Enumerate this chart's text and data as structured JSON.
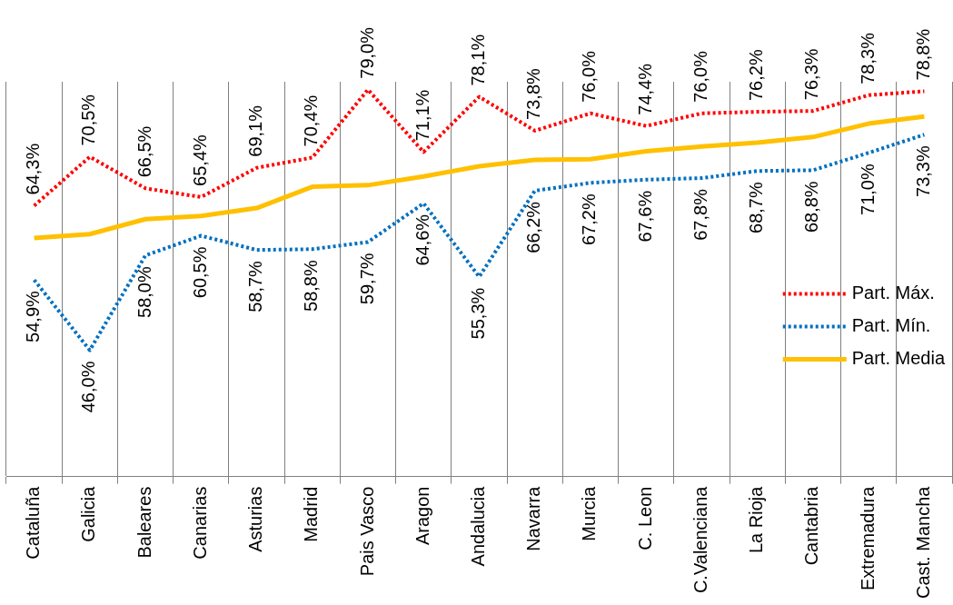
{
  "chart_data": {
    "type": "line",
    "categories": [
      "Cataluña",
      "Galicia",
      "Baleares",
      "Canarias",
      "Asturias",
      "Madrid",
      "Pais Vasco",
      "Aragon",
      "Andalucia",
      "Navarra",
      "Murcia",
      "C. Leon",
      "C.Valenciana",
      "La Rioja",
      "Cantabria",
      "Extremadura",
      "Cast. Mancha"
    ],
    "ylim": [
      30,
      80
    ],
    "tick_labels": "x",
    "grid": "x",
    "legend": "right",
    "marker": "none",
    "series": [
      {
        "name": "Part. Máx.",
        "color": "#ff0000",
        "line_style": "dotted",
        "values": [
          64.3,
          70.5,
          66.5,
          65.4,
          69.1,
          70.4,
          79.0,
          71.1,
          78.1,
          73.8,
          76.0,
          74.4,
          76.0,
          76.2,
          76.3,
          78.3,
          78.8
        ],
        "value_labels": [
          "64,3%",
          "70,5%",
          "66,5%",
          "65,4%",
          "69,1%",
          "70,4%",
          "79,0%",
          "71,1%",
          "78,1%",
          "73,8%",
          "76,0%",
          "74,4%",
          "76,0%",
          "76,2%",
          "76,3%",
          "78,3%",
          "78,8%"
        ]
      },
      {
        "name": "Part. Mín.",
        "color": "#0070c0",
        "line_style": "dotted",
        "values": [
          54.9,
          46.0,
          58.0,
          60.5,
          58.7,
          58.8,
          59.7,
          64.6,
          55.3,
          66.2,
          67.2,
          67.6,
          67.8,
          68.7,
          68.8,
          71.0,
          73.3
        ],
        "value_labels": [
          "54,9%",
          "46,0%",
          "58,0%",
          "60,5%",
          "58,7%",
          "58,8%",
          "59,7%",
          "64,6%",
          "55,3%",
          "66,2%",
          "67,2%",
          "67,6%",
          "67,8%",
          "68,7%",
          "68,8%",
          "71,0%",
          "73,3%"
        ]
      },
      {
        "name": "Part. Media",
        "color": "#ffc000",
        "line_style": "solid",
        "values": [
          60.2,
          60.7,
          62.6,
          63.0,
          64.0,
          66.7,
          66.9,
          68.0,
          69.3,
          70.1,
          70.2,
          71.2,
          71.8,
          72.3,
          73.0,
          74.7,
          75.6
        ]
      }
    ]
  }
}
